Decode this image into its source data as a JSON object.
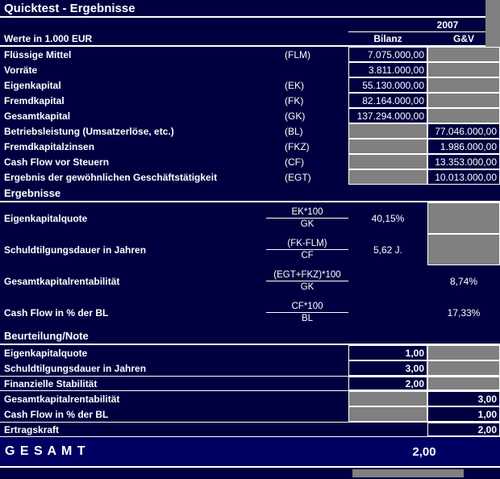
{
  "title": "Quicktest - Ergebnisse",
  "colors": {
    "background": "#000040",
    "cell_gray": "#808080",
    "total_row_bg": "#000063",
    "text": "#ffffff"
  },
  "header": {
    "year": "2007",
    "unit_label": "Werte in 1.000 EUR",
    "col_bilanz": "Bilanz",
    "col_gv": "G&V"
  },
  "balance_rows": [
    {
      "label": "Flüssige Mittel",
      "code": "(FLM)",
      "bilanz": "7.075.000,00"
    },
    {
      "label": "Vorräte",
      "code": "",
      "bilanz": "3.811.000,00"
    },
    {
      "label": "Eigenkapital",
      "code": "(EK)",
      "bilanz": "55.130.000,00"
    },
    {
      "label": "Fremdkapital",
      "code": "(FK)",
      "bilanz": "82.164.000,00"
    },
    {
      "label": "Gesamtkapital",
      "code": "(GK)",
      "bilanz": "137.294.000,00"
    }
  ],
  "pl_rows": [
    {
      "label": "Betriebsleistung (Umsatzerlöse, etc.)",
      "code": "(BL)",
      "gv": "77.046.000,00"
    },
    {
      "label": "Fremdkapitalzinsen",
      "code": "(FKZ)",
      "gv": "1.986.000,00"
    },
    {
      "label": "Cash Flow vor Steuern",
      "code": "(CF)",
      "gv": "13.353.000,00"
    },
    {
      "label": "Ergebnis der gewöhnlichen Geschäftstätigkeit",
      "code": "(EGT)",
      "gv": "10.013.000,00"
    }
  ],
  "results": {
    "heading": "Ergebnisse",
    "rows": [
      {
        "label": "Eigenkapitalquote",
        "numerator": "EK*100",
        "denominator": "GK",
        "value": "40,15%",
        "value_col": "bilanz"
      },
      {
        "label": "Schuldtilgungsdauer in Jahren",
        "numerator": "(FK-FLM)",
        "denominator": "CF",
        "value": "5,62 J.",
        "value_col": "bilanz"
      },
      {
        "label": "Gesamtkapitalrentabilität",
        "numerator": "(EGT+FKZ)*100",
        "denominator": "GK",
        "value": "8,74%",
        "value_col": "gv"
      },
      {
        "label": "Cash Flow in % der BL",
        "numerator": "CF*100",
        "denominator": "BL",
        "value": "17,33%",
        "value_col": "gv"
      }
    ]
  },
  "ratings": {
    "heading": "Beurteilung/Note",
    "rows": [
      {
        "label": "Eigenkapitalquote",
        "value": "1,00",
        "value_col": "bilanz",
        "bold_label": false
      },
      {
        "label": "Schuldtilgungsdauer in Jahren",
        "value": "3,00",
        "value_col": "bilanz",
        "bold_label": false
      },
      {
        "label": "Finanzielle Stabilität",
        "value": "2,00",
        "value_col": "bilanz",
        "bold_label": true
      },
      {
        "label": "Gesamtkapitalrentabilität",
        "value": "3,00",
        "value_col": "gv",
        "bold_label": false
      },
      {
        "label": "Cash Flow in % der BL",
        "value": "1,00",
        "value_col": "gv",
        "bold_label": false
      },
      {
        "label": "Ertragskraft",
        "value": "2,00",
        "value_col": "gv",
        "bold_label": true
      }
    ]
  },
  "total": {
    "label": "G E S A M T",
    "value": "2,00"
  }
}
